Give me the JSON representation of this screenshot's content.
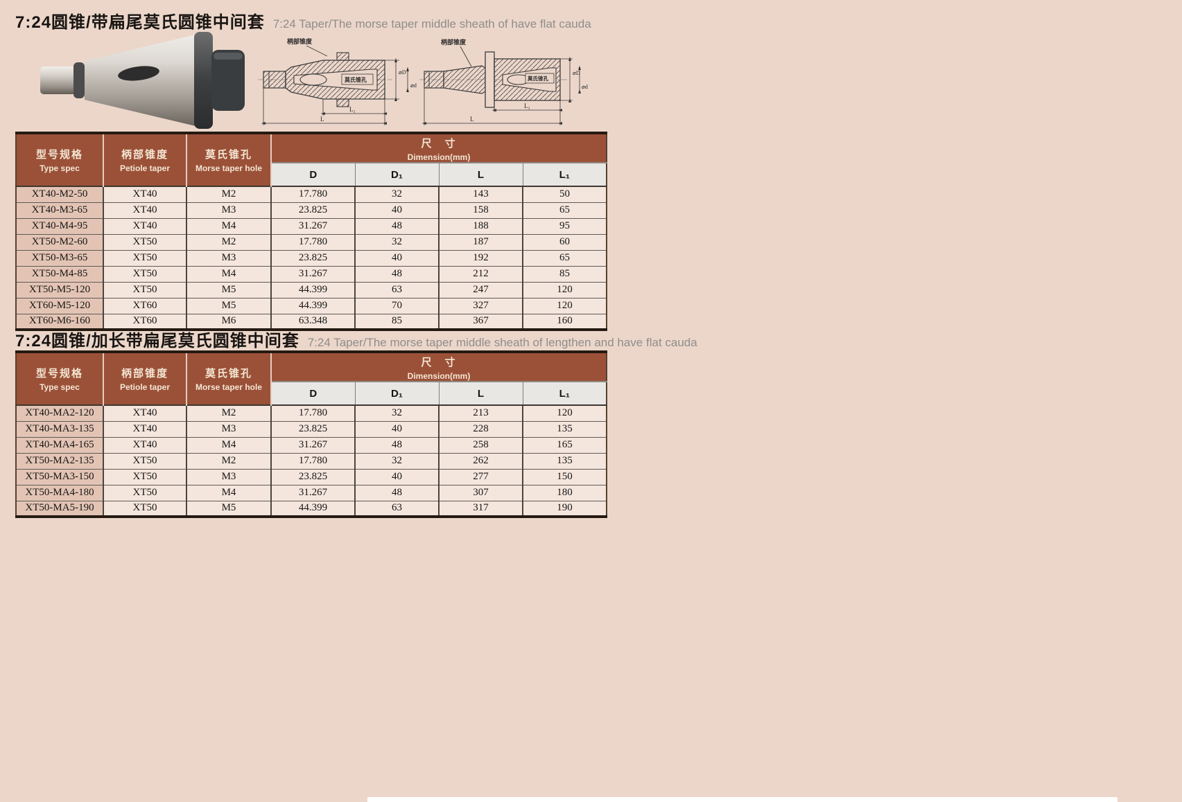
{
  "page": {
    "background_color": "#ecd6ca",
    "header_brown": "#9b5138",
    "cell_bg": "#f5e6dd",
    "first_col_bg": "#e3c4b4",
    "subheader_bg": "#e9e7e4"
  },
  "table_header": {
    "col1_zh": "型号规格",
    "col1_en": "Type spec",
    "col2_zh": "柄部锥度",
    "col2_en": "Petiole taper",
    "col3_zh": "莫氏锥孔",
    "col3_en": "Morse taper hole",
    "dim_zh": "尺　寸",
    "dim_en": "Dimension(mm)",
    "sub_d": "D",
    "sub_d1": "D₁",
    "sub_l": "L",
    "sub_l1": "L₁"
  },
  "section1": {
    "title_zh": "7:24圆锥/带扁尾莫氏圆锥中间套",
    "title_en": "7:24 Taper/The morse taper middle sheath of have flat cauda",
    "rows": [
      [
        "XT40-M2-50",
        "XT40",
        "M2",
        "17.780",
        "32",
        "143",
        "50"
      ],
      [
        "XT40-M3-65",
        "XT40",
        "M3",
        "23.825",
        "40",
        "158",
        "65"
      ],
      [
        "XT40-M4-95",
        "XT40",
        "M4",
        "31.267",
        "48",
        "188",
        "95"
      ],
      [
        "XT50-M2-60",
        "XT50",
        "M2",
        "17.780",
        "32",
        "187",
        "60"
      ],
      [
        "XT50-M3-65",
        "XT50",
        "M3",
        "23.825",
        "40",
        "192",
        "65"
      ],
      [
        "XT50-M4-85",
        "XT50",
        "M4",
        "31.267",
        "48",
        "212",
        "85"
      ],
      [
        "XT50-M5-120",
        "XT50",
        "M5",
        "44.399",
        "63",
        "247",
        "120"
      ],
      [
        "XT60-M5-120",
        "XT60",
        "M5",
        "44.399",
        "70",
        "327",
        "120"
      ],
      [
        "XT60-M6-160",
        "XT60",
        "M6",
        "63.348",
        "85",
        "367",
        "160"
      ]
    ]
  },
  "section2": {
    "title_zh": "7:24圆锥/加长带扁尾莫氏圆锥中间套",
    "title_en": "7:24 Taper/The morse taper middle sheath of lengthen and have flat cauda",
    "rows": [
      [
        "XT40-MA2-120",
        "XT40",
        "M2",
        "17.780",
        "32",
        "213",
        "120"
      ],
      [
        "XT40-MA3-135",
        "XT40",
        "M3",
        "23.825",
        "40",
        "228",
        "135"
      ],
      [
        "XT40-MA4-165",
        "XT40",
        "M4",
        "31.267",
        "48",
        "258",
        "165"
      ],
      [
        "XT50-MA2-135",
        "XT50",
        "M2",
        "17.780",
        "32",
        "262",
        "135"
      ],
      [
        "XT50-MA3-150",
        "XT50",
        "M3",
        "23.825",
        "40",
        "277",
        "150"
      ],
      [
        "XT50-MA4-180",
        "XT50",
        "M4",
        "31.267",
        "48",
        "307",
        "180"
      ],
      [
        "XT50-MA5-190",
        "XT50",
        "M5",
        "44.399",
        "63",
        "317",
        "190"
      ]
    ]
  },
  "drawing1": {
    "label_taper": "柄部锥度",
    "label_hole": "莫氏锥孔",
    "dim_D": "⌀D",
    "dim_d": "⌀d",
    "dim_L": "L",
    "dim_L1": "L₁"
  },
  "drawing2": {
    "label_taper": "柄部锥度",
    "label_hole": "莫氏锥孔",
    "dim_D": "⌀D",
    "dim_d": "⌀d",
    "dim_L": "L",
    "dim_L1": "L₁"
  }
}
